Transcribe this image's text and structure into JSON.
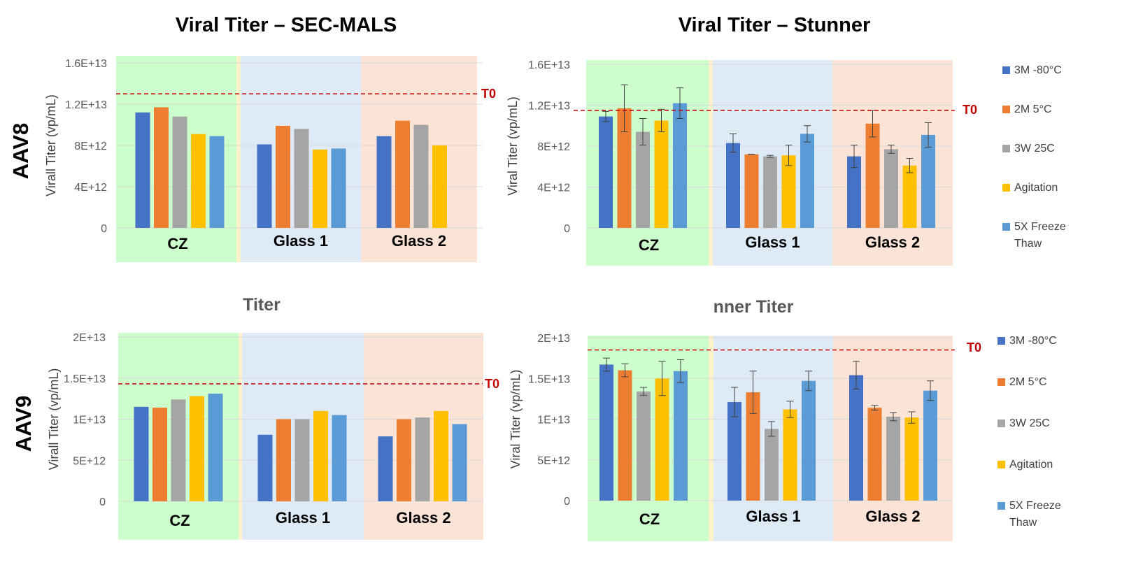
{
  "row_labels": [
    "AAV8",
    "AAV9"
  ],
  "colors": {
    "3M -80°C": "#4472C4",
    "2M 5°C": "#ED7D31",
    "3W 25C": "#A5A5A5",
    "Agitation": "#FFC000",
    "5X Freeze Thaw": "#5B9BD5",
    "bg_cz": "#CCFFCC",
    "bg_glass1": "#DEEAF6",
    "bg_glass2": "#FBE3D6",
    "t0": "#C00000"
  },
  "legend": [
    "3M -80°C",
    "2M 5°C",
    "3W 25C",
    "Agitation",
    "5X Freeze Thaw"
  ],
  "chart_data": [
    {
      "type": "bar",
      "title": "Viral Titer – SEC-MALS",
      "ylabel": "Virall Titer (vp/mL)",
      "categories": [
        "CZ",
        "Glass 1",
        "Glass 2"
      ],
      "ylim": [
        0,
        16000000000000.0
      ],
      "yticks": [
        0,
        4000000000000.0,
        8000000000000.0,
        12000000000000.0,
        16000000000000.0
      ],
      "ytick_labels": [
        "0",
        "4E+12",
        "8E+12",
        "1.2E+13",
        "1.6E+13"
      ],
      "reference": {
        "label": "T0",
        "value": 13000000000000.0
      },
      "grid": true,
      "series": [
        {
          "name": "3M -80°C",
          "values": [
            11200000000000.0,
            8100000000000.0,
            8900000000000.0
          ]
        },
        {
          "name": "2M 5°C",
          "values": [
            11700000000000.0,
            9900000000000.0,
            10400000000000.0
          ]
        },
        {
          "name": "3W 25C",
          "values": [
            10800000000000.0,
            9600000000000.0,
            10000000000000.0
          ]
        },
        {
          "name": "Agitation",
          "values": [
            9100000000000.0,
            7600000000000.0,
            8000000000000.0
          ]
        },
        {
          "name": "5X Freeze Thaw",
          "values": [
            8900000000000.0,
            7700000000000.0,
            null
          ]
        }
      ]
    },
    {
      "type": "bar",
      "title": "Viral Titer – Stunner",
      "ylabel": "Viral Titer (vp/mL)",
      "categories": [
        "CZ",
        "Glass 1",
        "Glass 2"
      ],
      "ylim": [
        0,
        16000000000000.0
      ],
      "yticks": [
        0,
        4000000000000.0,
        8000000000000.0,
        12000000000000.0,
        16000000000000.0
      ],
      "ytick_labels": [
        "0",
        "4E+12",
        "8E+12",
        "1.2E+13",
        "1.6E+13"
      ],
      "reference": {
        "label": "T0",
        "value": 11500000000000.0
      },
      "grid": true,
      "legend_position": "right",
      "series": [
        {
          "name": "3M -80°C",
          "values": [
            10900000000000.0,
            8300000000000.0,
            7000000000000.0
          ],
          "errors": [
            500000000000.0,
            900000000000.0,
            1100000000000.0
          ]
        },
        {
          "name": "2M 5°C",
          "values": [
            11700000000000.0,
            7200000000000.0,
            10200000000000.0
          ],
          "errors": [
            2300000000000.0,
            0.0,
            1300000000000.0
          ]
        },
        {
          "name": "3W 25C",
          "values": [
            9400000000000.0,
            7000000000000.0,
            7700000000000.0
          ],
          "errors": [
            1300000000000.0,
            100000000000.0,
            400000000000.0
          ]
        },
        {
          "name": "Agitation",
          "values": [
            10500000000000.0,
            7100000000000.0,
            6100000000000.0
          ],
          "errors": [
            1100000000000.0,
            1000000000000.0,
            700000000000.0
          ]
        },
        {
          "name": "5X Freeze Thaw",
          "values": [
            12200000000000.0,
            9200000000000.0,
            9100000000000.0
          ],
          "errors": [
            1500000000000.0,
            800000000000.0,
            1200000000000.0
          ]
        }
      ]
    },
    {
      "type": "bar",
      "title": "Titer",
      "ylabel": "Virall Titer (vp/mL)",
      "categories": [
        "CZ",
        "Glass 1",
        "Glass 2"
      ],
      "ylim": [
        0,
        20000000000000.0
      ],
      "yticks": [
        0,
        5000000000000.0,
        10000000000000.0,
        15000000000000.0,
        20000000000000.0
      ],
      "ytick_labels": [
        "0",
        "5E+12",
        "1E+13",
        "1.5E+13",
        "2E+13"
      ],
      "reference": {
        "label": "T0",
        "value": 14300000000000.0
      },
      "grid": true,
      "series": [
        {
          "name": "3M -80°C",
          "values": [
            11500000000000.0,
            8100000000000.0,
            7900000000000.0
          ]
        },
        {
          "name": "2M 5°C",
          "values": [
            11400000000000.0,
            10000000000000.0,
            10000000000000.0
          ]
        },
        {
          "name": "3W 25C",
          "values": [
            12400000000000.0,
            10000000000000.0,
            10200000000000.0
          ]
        },
        {
          "name": "Agitation",
          "values": [
            12800000000000.0,
            11000000000000.0,
            11000000000000.0
          ]
        },
        {
          "name": "5X Freeze Thaw",
          "values": [
            13100000000000.0,
            10500000000000.0,
            9400000000000.0
          ]
        }
      ]
    },
    {
      "type": "bar",
      "title": "nner Titer",
      "ylabel": "Viral Titer (vp/mL)",
      "categories": [
        "CZ",
        "Glass 1",
        "Glass 2"
      ],
      "ylim": [
        0,
        20000000000000.0
      ],
      "yticks": [
        0,
        5000000000000.0,
        10000000000000.0,
        15000000000000.0,
        20000000000000.0
      ],
      "ytick_labels": [
        "0",
        "5E+12",
        "1E+13",
        "1.5E+13",
        "2E+13"
      ],
      "reference": {
        "label": "T0",
        "value": 18500000000000.0
      },
      "grid": true,
      "legend_position": "right",
      "series": [
        {
          "name": "3M -80°C",
          "values": [
            16700000000000.0,
            12100000000000.0,
            15400000000000.0
          ],
          "errors": [
            800000000000.0,
            1800000000000.0,
            1700000000000.0
          ]
        },
        {
          "name": "2M 5°C",
          "values": [
            16000000000000.0,
            13300000000000.0,
            11400000000000.0
          ],
          "errors": [
            800000000000.0,
            2600000000000.0,
            300000000000.0
          ]
        },
        {
          "name": "3W 25C",
          "values": [
            13400000000000.0,
            8800000000000.0,
            10300000000000.0
          ],
          "errors": [
            500000000000.0,
            900000000000.0,
            500000000000.0
          ]
        },
        {
          "name": "Agitation",
          "values": [
            15000000000000.0,
            11200000000000.0,
            10200000000000.0
          ],
          "errors": [
            2100000000000.0,
            1000000000000.0,
            700000000000.0
          ]
        },
        {
          "name": "5X Freeze Thaw",
          "values": [
            15900000000000.0,
            14700000000000.0,
            13500000000000.0
          ],
          "errors": [
            1400000000000.0,
            1200000000000.0,
            1200000000000.0
          ]
        }
      ]
    }
  ]
}
